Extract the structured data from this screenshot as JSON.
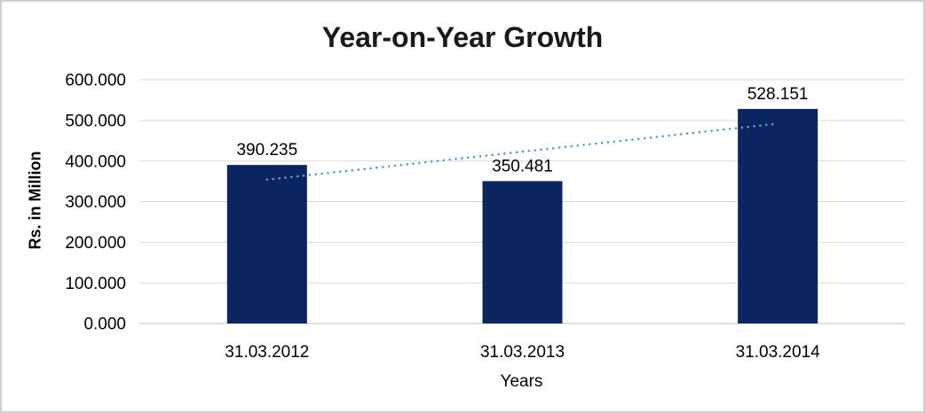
{
  "chart_data": {
    "type": "bar",
    "title": "Year-on-Year Growth",
    "xlabel": "Years",
    "ylabel": "Rs. in Million",
    "categories": [
      "31.03.2012",
      "31.03.2013",
      "31.03.2014"
    ],
    "values": [
      390.235,
      350.481,
      528.151
    ],
    "data_labels": [
      "390.235",
      "350.481",
      "528.151"
    ],
    "ylim": [
      0,
      600
    ],
    "ytick_step": 100,
    "ytick_labels": [
      "0.000",
      "100.000",
      "200.000",
      "300.000",
      "400.000",
      "500.000",
      "600.000"
    ],
    "grid": true,
    "legend": false,
    "bar_color": "#0a2560",
    "gridline_color": "#d9d9d9",
    "axisline_color": "#c0c0c0",
    "text_color": "#000000",
    "trendline": {
      "type": "linear",
      "style": "dotted",
      "color": "#5b9bd5",
      "start_value": 354,
      "end_value": 492
    }
  }
}
